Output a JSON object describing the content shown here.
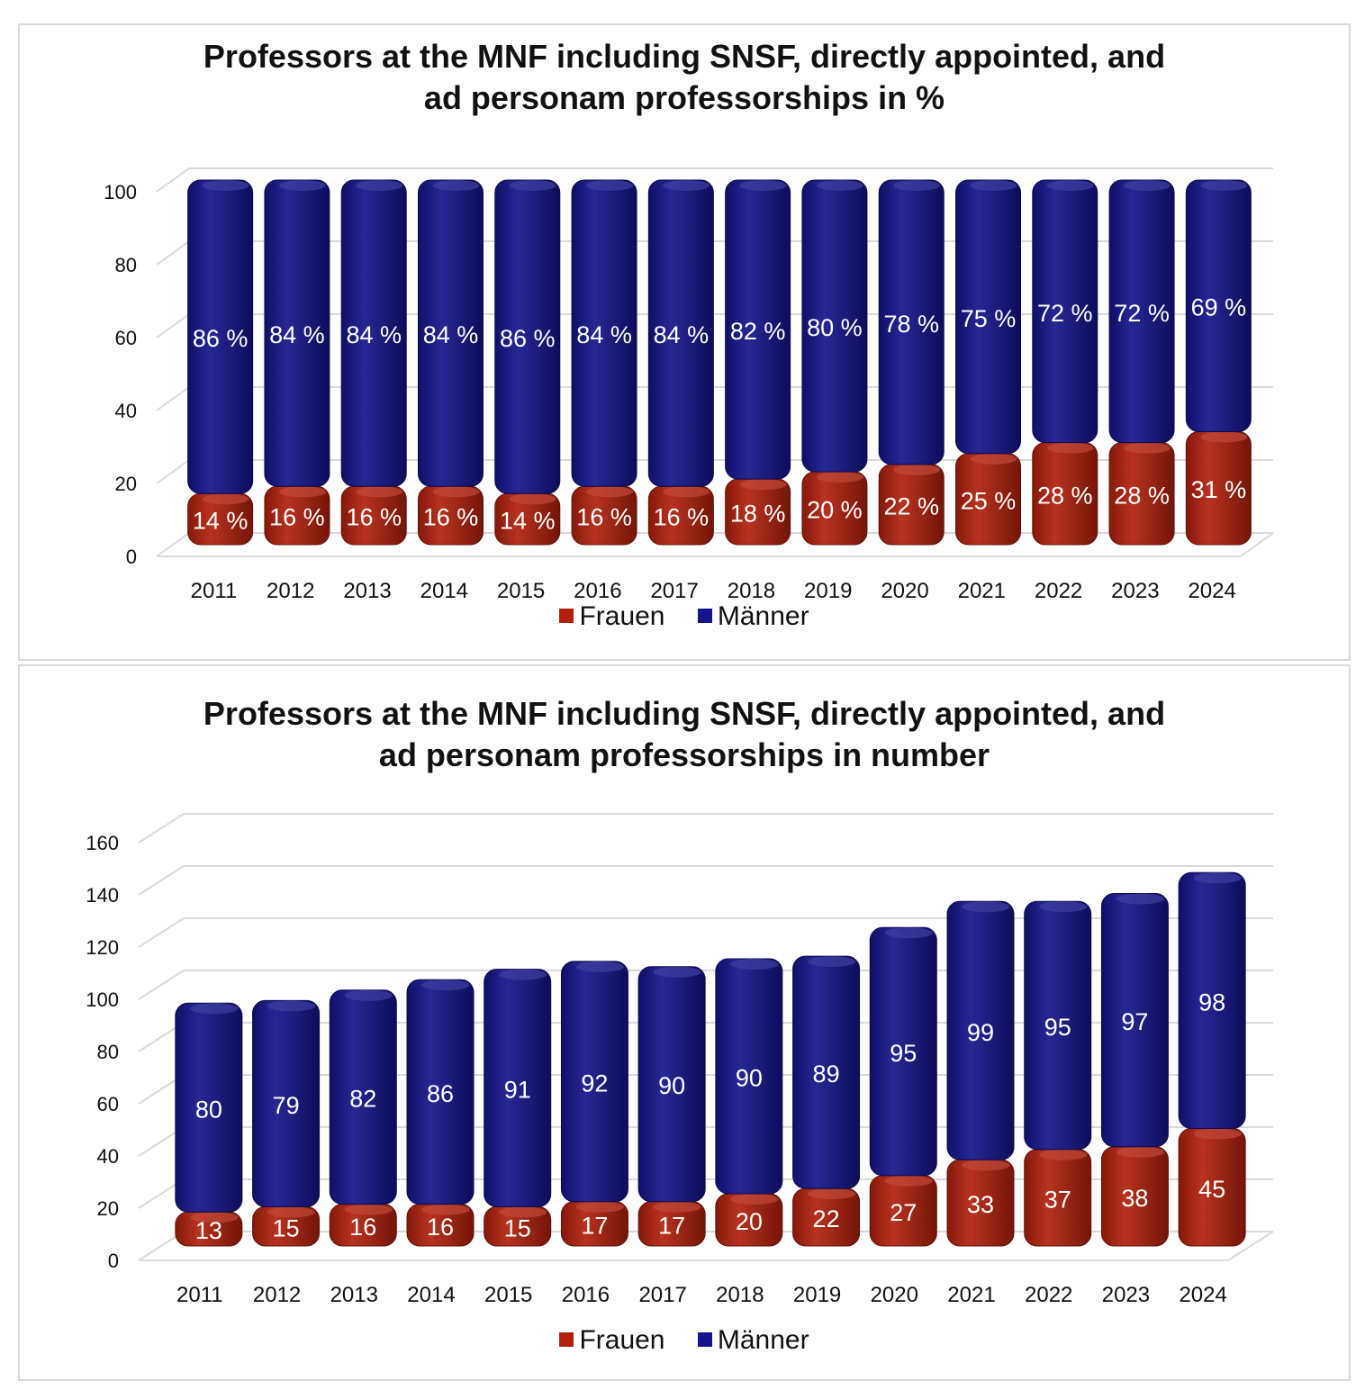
{
  "colors": {
    "frauen": "#b2200d",
    "maenner": "#14148c",
    "grid": "#d9d9d9",
    "label": "#ffffff"
  },
  "legend": {
    "frauen": "Frauen",
    "maenner": "Männer"
  },
  "chart_data": [
    {
      "type": "bar",
      "stacked": true,
      "title_line1": "Professors at the MNF including SNSF, directly appointed, and",
      "title_line2": "ad personam professorships in %",
      "categories": [
        "2011",
        "2012",
        "2013",
        "2014",
        "2015",
        "2016",
        "2017",
        "2018",
        "2019",
        "2020",
        "2021",
        "2022",
        "2023",
        "2024"
      ],
      "series": [
        {
          "name": "Frauen",
          "values": [
            14,
            16,
            16,
            16,
            14,
            16,
            16,
            18,
            20,
            22,
            25,
            28,
            28,
            31
          ],
          "labels": [
            "14 %",
            "16 %",
            "16 %",
            "16 %",
            "14 %",
            "16 %",
            "16 %",
            "18 %",
            "20 %",
            "22 %",
            "25 %",
            "28 %",
            "28 %",
            "31 %"
          ]
        },
        {
          "name": "Männer",
          "values": [
            86,
            84,
            84,
            84,
            86,
            84,
            84,
            82,
            80,
            78,
            75,
            72,
            72,
            69
          ],
          "labels": [
            "86 %",
            "84 %",
            "84 %",
            "84 %",
            "86 %",
            "84 %",
            "84 %",
            "82 %",
            "80 %",
            "78 %",
            "75 %",
            "72 %",
            "72 %",
            "69 %"
          ]
        }
      ],
      "ylim": [
        0,
        100
      ],
      "yticks": [
        0,
        20,
        40,
        60,
        80,
        100
      ],
      "grid": true,
      "legend_position": "bottom"
    },
    {
      "type": "bar",
      "stacked": true,
      "title_line1": "Professors at the MNF including SNSF, directly appointed, and",
      "title_line2": "ad personam professorships in number",
      "categories": [
        "2011",
        "2012",
        "2013",
        "2014",
        "2015",
        "2016",
        "2017",
        "2018",
        "2019",
        "2020",
        "2021",
        "2022",
        "2023",
        "2024"
      ],
      "series": [
        {
          "name": "Frauen",
          "values": [
            13,
            15,
            16,
            16,
            15,
            17,
            17,
            20,
            22,
            27,
            33,
            37,
            38,
            45
          ],
          "labels": [
            "13",
            "15",
            "16",
            "16",
            "15",
            "17",
            "17",
            "20",
            "22",
            "27",
            "33",
            "37",
            "38",
            "45"
          ]
        },
        {
          "name": "Männer",
          "values": [
            80,
            79,
            82,
            86,
            91,
            92,
            90,
            90,
            89,
            95,
            99,
            95,
            97,
            98
          ],
          "labels": [
            "80",
            "79",
            "82",
            "86",
            "91",
            "92",
            "90",
            "90",
            "89",
            "95",
            "99",
            "95",
            "97",
            "98"
          ]
        }
      ],
      "ylim": [
        0,
        160
      ],
      "yticks": [
        0,
        20,
        40,
        60,
        80,
        100,
        120,
        140,
        160
      ],
      "grid": true,
      "legend_position": "bottom"
    }
  ]
}
